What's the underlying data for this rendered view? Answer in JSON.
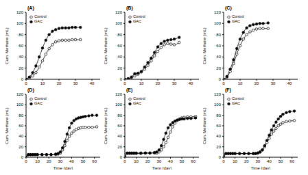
{
  "chart_data": [
    {
      "type": "line",
      "title": "(A)",
      "y_label": "Cum. Methane (mL)",
      "legend": "upper left",
      "grid": false,
      "xlim": [
        0,
        45
      ],
      "xticks": [
        0,
        10,
        20,
        30,
        40
      ],
      "ylim": [
        0,
        120
      ],
      "yticks": [
        0,
        20,
        40,
        60,
        80,
        100,
        120
      ],
      "x": [
        0,
        2,
        4,
        6,
        8,
        10,
        12,
        14,
        16,
        18,
        20,
        22,
        24,
        26,
        28,
        30,
        33
      ],
      "series": [
        {
          "name": "Control",
          "color": "#000000",
          "marker": "open_circle",
          "values": [
            0,
            2,
            6,
            12,
            22,
            33,
            45,
            55,
            62,
            67,
            69,
            70,
            70,
            70,
            71,
            71,
            71
          ]
        },
        {
          "name": "GAC",
          "color": "#000000",
          "marker": "circle",
          "values": [
            0,
            4,
            12,
            24,
            40,
            56,
            70,
            80,
            86,
            89,
            91,
            92,
            92,
            92,
            93,
            93,
            93
          ]
        }
      ]
    },
    {
      "type": "line",
      "title": "(B)",
      "y_label": "Cum. Methane (mL)",
      "legend": "upper left",
      "grid": false,
      "xlim": [
        0,
        45
      ],
      "xticks": [
        0,
        10,
        20,
        30,
        40
      ],
      "ylim": [
        0,
        120
      ],
      "yticks": [
        0,
        20,
        40,
        60,
        80,
        100,
        120
      ],
      "x": [
        0,
        2,
        4,
        6,
        8,
        10,
        12,
        14,
        16,
        18,
        20,
        22,
        24,
        26,
        28,
        30,
        33
      ],
      "series": [
        {
          "name": "Control",
          "color": "#000000",
          "marker": "open_circle",
          "values": [
            0,
            1,
            3,
            6,
            9,
            13,
            18,
            25,
            33,
            42,
            50,
            57,
            62,
            64,
            63,
            62,
            66
          ]
        },
        {
          "name": "GAC",
          "color": "#000000",
          "marker": "circle",
          "values": [
            0,
            1,
            4,
            10,
            11,
            14,
            22,
            30,
            38,
            48,
            58,
            64,
            68,
            70,
            71,
            72,
            75
          ]
        }
      ]
    },
    {
      "type": "line",
      "title": "(C)",
      "y_label": "Cum. Methane (mL)",
      "legend": "upper left",
      "grid": false,
      "xlim": [
        0,
        45
      ],
      "xticks": [
        0,
        10,
        20,
        30,
        40
      ],
      "ylim": [
        0,
        120
      ],
      "yticks": [
        0,
        20,
        40,
        60,
        80,
        100,
        120
      ],
      "x": [
        0,
        2,
        4,
        6,
        8,
        10,
        12,
        14,
        16,
        18,
        20,
        22,
        24,
        27
      ],
      "series": [
        {
          "name": "Control",
          "color": "#000000",
          "marker": "open_circle",
          "values": [
            0,
            4,
            14,
            28,
            45,
            60,
            72,
            80,
            85,
            88,
            90,
            91,
            91,
            91
          ]
        },
        {
          "name": "GAC",
          "color": "#000000",
          "marker": "circle",
          "values": [
            0,
            5,
            18,
            35,
            55,
            72,
            84,
            92,
            96,
            98,
            99,
            100,
            100,
            101
          ]
        }
      ]
    },
    {
      "type": "line",
      "title": "(D)",
      "x_label": "Time (day)",
      "y_label": "Cum. Methane (mL)",
      "legend": "upper left",
      "grid": false,
      "xlim": [
        0,
        65
      ],
      "xticks": [
        0,
        10,
        20,
        30,
        40,
        50,
        60
      ],
      "ylim": [
        0,
        120
      ],
      "yticks": [
        0,
        20,
        40,
        60,
        80,
        100,
        120
      ],
      "x": [
        0,
        2,
        4,
        6,
        8,
        10,
        14,
        18,
        22,
        26,
        28,
        30,
        32,
        34,
        36,
        38,
        40,
        42,
        44,
        46,
        48,
        50,
        52,
        55,
        58,
        62
      ],
      "series": [
        {
          "name": "Control",
          "color": "#000000",
          "marker": "open_circle",
          "values": [
            0,
            5,
            5,
            5,
            5,
            5,
            5,
            5,
            5,
            5,
            6,
            8,
            14,
            22,
            32,
            40,
            46,
            50,
            53,
            55,
            56,
            57,
            57,
            57,
            57,
            58
          ]
        },
        {
          "name": "GAC",
          "color": "#000000",
          "marker": "circle",
          "values": [
            0,
            5,
            5,
            5,
            5,
            5,
            5,
            5,
            5,
            6,
            7,
            10,
            18,
            30,
            44,
            56,
            65,
            70,
            73,
            75,
            76,
            77,
            78,
            79,
            80,
            80
          ]
        }
      ]
    },
    {
      "type": "line",
      "title": "(E)",
      "x_label": "Tiem (day)",
      "y_label": "Cum. Methane (mL)",
      "legend": "upper left",
      "grid": false,
      "xlim": [
        0,
        65
      ],
      "xticks": [
        0,
        10,
        20,
        30,
        40,
        50,
        60
      ],
      "ylim": [
        0,
        120
      ],
      "yticks": [
        0,
        20,
        40,
        60,
        80,
        100,
        120
      ],
      "x": [
        0,
        2,
        4,
        6,
        8,
        10,
        14,
        18,
        22,
        26,
        28,
        30,
        32,
        34,
        36,
        38,
        40,
        42,
        44,
        46,
        48,
        50,
        52,
        55,
        58,
        62
      ],
      "series": [
        {
          "name": "Control",
          "color": "#000000",
          "marker": "open_circle",
          "values": [
            0,
            7,
            7,
            7,
            7,
            7,
            7,
            8,
            8,
            8,
            8,
            10,
            14,
            20,
            28,
            38,
            48,
            58,
            65,
            70,
            73,
            75,
            76,
            77,
            77,
            78
          ]
        },
        {
          "name": "GAC",
          "color": "#000000",
          "marker": "circle",
          "values": [
            0,
            8,
            8,
            8,
            8,
            8,
            8,
            8,
            8,
            9,
            10,
            14,
            22,
            34,
            46,
            56,
            62,
            66,
            69,
            71,
            72,
            73,
            73,
            74,
            74,
            75
          ]
        }
      ]
    },
    {
      "type": "line",
      "title": "(F)",
      "x_label": "Time (day)",
      "y_label": "Cum. Methane (mL)",
      "legend": "upper left",
      "grid": false,
      "xlim": [
        0,
        65
      ],
      "xticks": [
        0,
        10,
        20,
        30,
        40,
        50,
        60
      ],
      "ylim": [
        0,
        120
      ],
      "yticks": [
        0,
        20,
        40,
        60,
        80,
        100,
        120
      ],
      "x": [
        0,
        2,
        4,
        6,
        8,
        10,
        14,
        18,
        22,
        26,
        28,
        30,
        32,
        34,
        36,
        38,
        40,
        42,
        44,
        46,
        48,
        50,
        52,
        55,
        58,
        62
      ],
      "series": [
        {
          "name": "Control",
          "color": "#000000",
          "marker": "open_circle",
          "values": [
            0,
            7,
            7,
            7,
            7,
            7,
            7,
            7,
            7,
            7,
            7,
            8,
            10,
            14,
            20,
            28,
            36,
            44,
            50,
            55,
            60,
            63,
            66,
            68,
            69,
            70
          ]
        },
        {
          "name": "GAC",
          "color": "#000000",
          "marker": "circle",
          "values": [
            0,
            7,
            7,
            7,
            7,
            7,
            7,
            7,
            7,
            7,
            7,
            8,
            10,
            14,
            22,
            32,
            42,
            52,
            60,
            67,
            73,
            78,
            82,
            85,
            87,
            88
          ]
        }
      ]
    }
  ]
}
